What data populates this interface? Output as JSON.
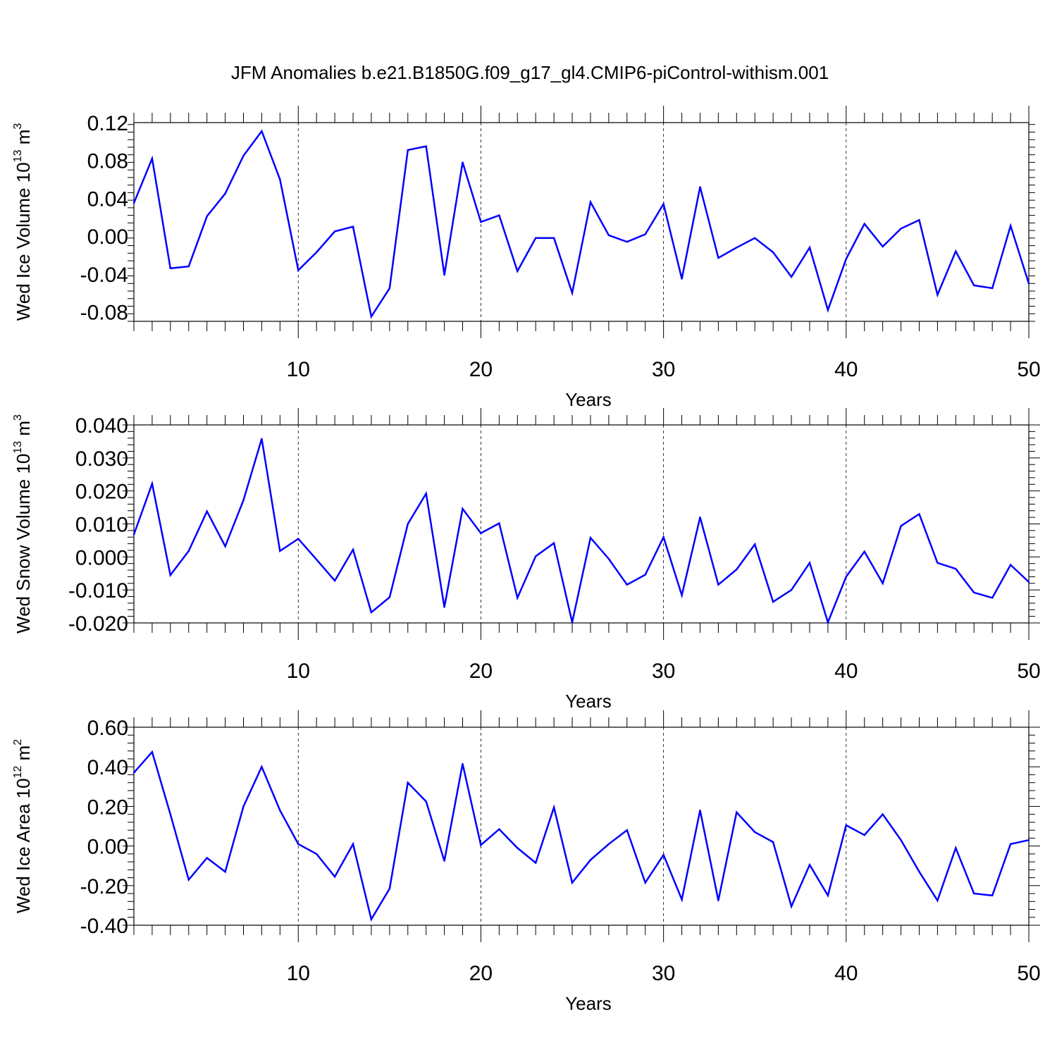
{
  "chart_data": [
    {
      "type": "line",
      "title": "JFM Anomalies b.e21.B1850G.f09_g17_gl4.CMIP6-piControl-withism.001",
      "xlabel": "Years",
      "ylabel": "Wed Ice Volume 10",
      "ylabel_sup": "13",
      "ylabel_unit": " m",
      "ylabel_unit_sup": "3",
      "xlim": [
        1,
        50
      ],
      "ylim": [
        -0.09,
        0.12
      ],
      "xticks": [
        10,
        20,
        30,
        40,
        50
      ],
      "yticks": [
        -0.08,
        -0.04,
        0.0,
        0.04,
        0.08,
        0.12
      ],
      "ytick_labels": [
        "-0.08",
        "-0.04",
        "0.00",
        "0.04",
        "0.08",
        "0.12"
      ],
      "grid": "vertical dashed at major x ticks",
      "color": "#0000ff",
      "x": [
        1,
        2,
        3,
        4,
        5,
        6,
        7,
        8,
        9,
        10,
        11,
        12,
        13,
        14,
        15,
        16,
        17,
        18,
        19,
        20,
        21,
        22,
        23,
        24,
        25,
        26,
        27,
        28,
        29,
        30,
        31,
        32,
        33,
        34,
        35,
        36,
        37,
        38,
        39,
        40,
        41,
        42,
        43,
        44,
        45,
        46,
        47,
        48,
        49,
        50
      ],
      "values": [
        0.035,
        0.082,
        -0.034,
        -0.032,
        0.021,
        0.045,
        0.085,
        0.111,
        0.06,
        -0.036,
        -0.017,
        0.005,
        0.01,
        -0.085,
        -0.055,
        0.091,
        0.095,
        -0.041,
        0.078,
        0.015,
        0.022,
        -0.037,
        -0.002,
        -0.002,
        -0.06,
        0.036,
        0.001,
        -0.006,
        0.002,
        0.034,
        -0.045,
        0.052,
        -0.023,
        -0.012,
        -0.002,
        -0.017,
        -0.043,
        -0.012,
        -0.078,
        -0.024,
        0.013,
        -0.011,
        0.008,
        0.017,
        -0.062,
        -0.016,
        -0.052,
        -0.055,
        0.011,
        -0.05
      ]
    },
    {
      "type": "line",
      "xlabel": "Years",
      "ylabel": "Wed Snow Volume 10",
      "ylabel_sup": "13",
      "ylabel_unit": " m",
      "ylabel_unit_sup": "3",
      "xlim": [
        1,
        50
      ],
      "ylim": [
        -0.02,
        0.04
      ],
      "xticks": [
        10,
        20,
        30,
        40,
        50
      ],
      "yticks": [
        -0.02,
        -0.01,
        0.0,
        0.01,
        0.02,
        0.03,
        0.04
      ],
      "ytick_labels": [
        "-0.020",
        "-0.010",
        "0.000",
        "0.010",
        "0.020",
        "0.030",
        "0.040"
      ],
      "grid": "vertical dashed at major x ticks",
      "color": "#0000ff",
      "x": [
        1,
        2,
        3,
        4,
        5,
        6,
        7,
        8,
        9,
        10,
        11,
        12,
        13,
        14,
        15,
        16,
        17,
        18,
        19,
        20,
        21,
        22,
        23,
        24,
        25,
        26,
        27,
        28,
        29,
        30,
        31,
        32,
        33,
        34,
        35,
        36,
        37,
        38,
        39,
        40,
        41,
        42,
        43,
        44,
        45,
        46,
        47,
        48,
        49,
        50
      ],
      "values": [
        0.0068,
        0.0222,
        -0.0055,
        0.0018,
        0.0138,
        0.0032,
        0.0172,
        0.0358,
        0.0018,
        0.0055,
        -0.0008,
        -0.0072,
        0.0022,
        -0.0168,
        -0.0122,
        0.01,
        0.0192,
        -0.0152,
        0.0146,
        0.0072,
        0.0102,
        -0.0124,
        0.0002,
        0.0042,
        -0.0198,
        0.0058,
        -0.0006,
        -0.0084,
        -0.0054,
        0.006,
        -0.0116,
        0.012,
        -0.0084,
        -0.0038,
        0.0038,
        -0.0136,
        -0.01,
        -0.0018,
        -0.0198,
        -0.006,
        0.0016,
        -0.008,
        0.0094,
        0.013,
        -0.0018,
        -0.0036,
        -0.0108,
        -0.0124,
        -0.0024,
        -0.0076
      ]
    },
    {
      "type": "line",
      "xlabel": "Years",
      "ylabel": "Wed Ice Area 10",
      "ylabel_sup": "12",
      "ylabel_unit": " m",
      "ylabel_unit_sup": "2",
      "xlim": [
        1,
        50
      ],
      "ylim": [
        -0.4,
        0.6
      ],
      "xticks": [
        10,
        20,
        30,
        40,
        50
      ],
      "yticks": [
        -0.4,
        -0.2,
        0.0,
        0.2,
        0.4,
        0.6
      ],
      "ytick_labels": [
        "-0.40",
        "-0.20",
        "0.00",
        "0.20",
        "0.40",
        "0.60"
      ],
      "grid": "vertical dashed at major x ticks",
      "color": "#0000ff",
      "x": [
        1,
        2,
        3,
        4,
        5,
        6,
        7,
        8,
        9,
        10,
        11,
        12,
        13,
        14,
        15,
        16,
        17,
        18,
        19,
        20,
        21,
        22,
        23,
        24,
        25,
        26,
        27,
        28,
        29,
        30,
        31,
        32,
        33,
        34,
        35,
        36,
        37,
        38,
        39,
        40,
        41,
        42,
        43,
        44,
        45,
        46,
        47,
        48,
        49,
        50
      ],
      "values": [
        0.37,
        0.475,
        0.16,
        -0.17,
        -0.06,
        -0.13,
        0.2,
        0.4,
        0.18,
        0.01,
        -0.04,
        -0.155,
        0.01,
        -0.37,
        -0.215,
        0.32,
        0.225,
        -0.075,
        0.415,
        0.005,
        0.085,
        -0.01,
        -0.085,
        0.195,
        -0.185,
        -0.07,
        0.01,
        0.08,
        -0.185,
        -0.045,
        -0.27,
        0.18,
        -0.275,
        0.17,
        0.07,
        0.02,
        -0.305,
        -0.095,
        -0.25,
        0.105,
        0.055,
        0.16,
        0.03,
        -0.13,
        -0.275,
        -0.01,
        -0.24,
        -0.25,
        0.01,
        0.03
      ]
    }
  ]
}
